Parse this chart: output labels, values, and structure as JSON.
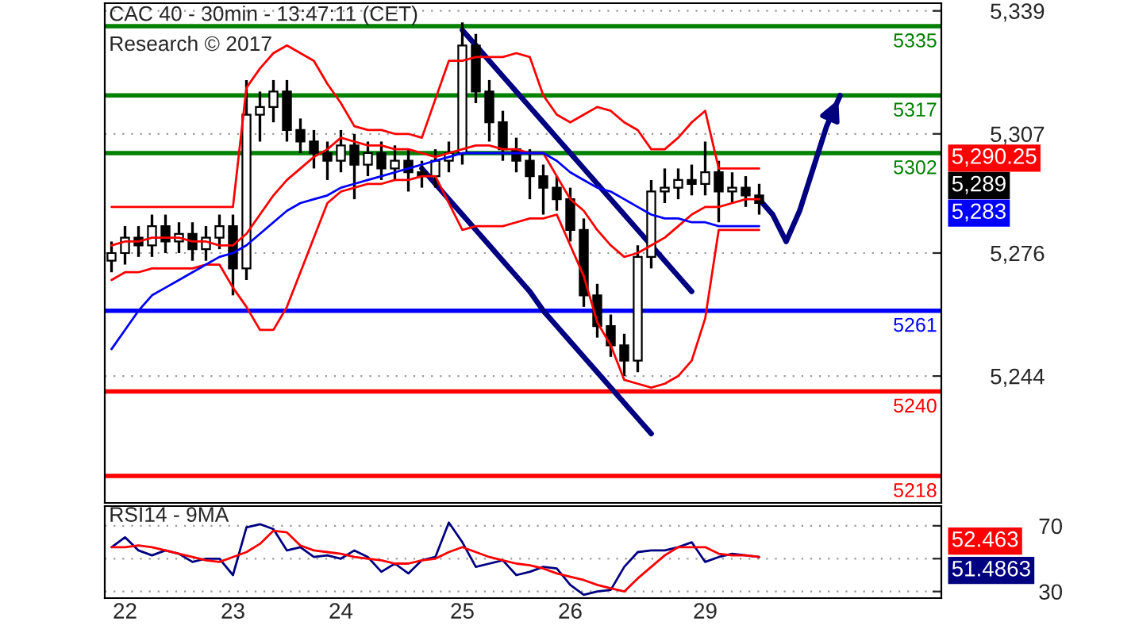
{
  "chart_data": [
    {
      "type": "candlestick",
      "title": "CAC 40 - 30min - 13:47:11 (CET)",
      "annotations": [
        "Research © 2017",
        "5,290.25",
        "5,289",
        "5,283"
      ],
      "categories": [
        null,
        "22",
        null,
        null,
        null,
        null,
        null,
        null,
        null,
        "23",
        null,
        null,
        null,
        null,
        null,
        null,
        null,
        "24",
        null,
        null,
        null,
        null,
        null,
        null,
        null,
        null,
        "25",
        null,
        null,
        null,
        null,
        null,
        null,
        null,
        "26",
        null,
        null,
        null,
        null,
        null,
        null,
        null,
        null,
        null,
        "29",
        null,
        null,
        null,
        null,
        null,
        null,
        null,
        null,
        null,
        null,
        null,
        null,
        null,
        null,
        null,
        null,
        null
      ],
      "ohlc": [
        [
          5274,
          5279,
          5271,
          5276
        ],
        [
          5276,
          5283,
          5273,
          5280
        ],
        [
          5280,
          5283,
          5275,
          5278
        ],
        [
          5278,
          5286,
          5275,
          5283
        ],
        [
          5283,
          5286,
          5276,
          5279
        ],
        [
          5279,
          5284,
          5276,
          5281
        ],
        [
          5281,
          5284,
          5274,
          5277
        ],
        [
          5277,
          5283,
          5274,
          5280
        ],
        [
          5280,
          5286,
          5277,
          5283
        ],
        [
          5283,
          5286,
          5265,
          5272
        ],
        [
          5272,
          5321,
          5269,
          5312
        ],
        [
          5312,
          5318,
          5305,
          5314
        ],
        [
          5314,
          5321,
          5310,
          5318
        ],
        [
          5318,
          5321,
          5305,
          5308
        ],
        [
          5308,
          5311,
          5302,
          5305
        ],
        [
          5305,
          5308,
          5298,
          5302
        ],
        [
          5302,
          5305,
          5295,
          5300
        ],
        [
          5300,
          5308,
          5297,
          5304
        ],
        [
          5304,
          5307,
          5290,
          5299
        ],
        [
          5299,
          5305,
          5296,
          5302
        ],
        [
          5302,
          5305,
          5295,
          5298
        ],
        [
          5298,
          5304,
          5295,
          5300
        ],
        [
          5300,
          5303,
          5292,
          5297
        ],
        [
          5297,
          5300,
          5293,
          5296
        ],
        [
          5296,
          5303,
          5293,
          5300
        ],
        [
          5300,
          5305,
          5297,
          5302
        ],
        [
          5302,
          5336,
          5299,
          5330
        ],
        [
          5330,
          5333,
          5315,
          5318
        ],
        [
          5318,
          5321,
          5305,
          5310
        ],
        [
          5310,
          5313,
          5300,
          5303
        ],
        [
          5303,
          5306,
          5297,
          5300
        ],
        [
          5300,
          5303,
          5290,
          5296
        ],
        [
          5296,
          5299,
          5286,
          5293
        ],
        [
          5293,
          5296,
          5287,
          5290
        ],
        [
          5290,
          5293,
          5279,
          5282
        ],
        [
          5282,
          5285,
          5262,
          5265
        ],
        [
          5265,
          5268,
          5254,
          5257
        ],
        [
          5257,
          5260,
          5249,
          5252
        ],
        [
          5252,
          5255,
          5244,
          5248
        ],
        [
          5248,
          5278,
          5245,
          5275
        ],
        [
          5275,
          5295,
          5272,
          5292
        ],
        [
          5292,
          5298,
          5289,
          5293
        ],
        [
          5293,
          5298,
          5290,
          5295
        ],
        [
          5295,
          5299,
          5291,
          5294
        ],
        [
          5294,
          5305,
          5291,
          5297
        ],
        [
          5297,
          5300,
          5284,
          5292
        ],
        [
          5292,
          5297,
          5289,
          5293
        ],
        [
          5293,
          5296,
          5288,
          5291
        ],
        [
          5291,
          5294,
          5286,
          5289
        ],
        null,
        null,
        null,
        null,
        null,
        null,
        null,
        null,
        null,
        null,
        null,
        null,
        null
      ],
      "series": [
        {
          "type": "line",
          "color": "#ff0000",
          "values": [
            5288,
            5288,
            5288,
            5288,
            5288,
            5288,
            5288,
            5288,
            5288,
            5288,
            5319,
            5324,
            5328,
            5330,
            5328,
            5326,
            5320,
            5315,
            5309,
            5308,
            5308,
            5307,
            5307,
            5306,
            5316,
            5326,
            5326,
            5327,
            5327,
            5327,
            5328,
            5327,
            5317,
            5312,
            5310,
            5312,
            5314,
            5313,
            5310,
            5308,
            5303,
            5303,
            5306,
            5310,
            5313,
            5298,
            5298,
            5298,
            5298,
            null,
            null,
            null,
            null,
            null,
            null,
            null,
            null,
            null,
            null,
            null,
            null,
            null
          ]
        },
        {
          "type": "line",
          "color": "#ff0000",
          "values": [
            5278,
            5279,
            5279,
            5280,
            5280,
            5280,
            5279,
            5279,
            5278,
            5278,
            5281,
            5286,
            5291,
            5295,
            5298,
            5301,
            5303,
            5306,
            5305,
            5304,
            5304,
            5303,
            5303,
            5302,
            5301,
            5302,
            5303,
            5304,
            5304,
            5303,
            5303,
            5302,
            5302,
            5296,
            5290,
            5287,
            5282,
            5278,
            5275,
            5276,
            5278,
            5280,
            5283,
            5286,
            5288,
            5288,
            5289,
            5290,
            5290,
            null,
            null,
            null,
            null,
            null,
            null,
            null,
            null,
            null,
            null,
            null,
            null,
            null
          ]
        },
        {
          "type": "line",
          "color": "#ff0000",
          "values": [
            5269,
            5271,
            5271,
            5272,
            5272,
            5272,
            5272,
            5273,
            5273,
            5267,
            5262,
            5256,
            5256,
            5262,
            5271,
            5280,
            5289,
            5292,
            5293,
            5294,
            5294,
            5295,
            5295,
            5296,
            5296,
            5289,
            5282,
            5283,
            5283,
            5283,
            5284,
            5285,
            5285,
            5286,
            5278,
            5270,
            5258,
            5252,
            5243,
            5242,
            5241,
            5242,
            5244,
            5248,
            5259,
            5282,
            5282,
            5282,
            5282,
            null,
            null,
            null,
            null,
            null,
            null,
            null,
            null,
            null,
            null,
            null,
            null,
            null
          ]
        },
        {
          "type": "line",
          "color": "#0000ff",
          "values": [
            5251,
            5256,
            5261,
            5265,
            5267,
            5269,
            5271,
            5273,
            5275,
            5276,
            5278,
            5281,
            5284,
            5287,
            5289,
            5290,
            5291,
            5293,
            5294,
            5295,
            5296,
            5297,
            5298,
            5299,
            5300,
            5301,
            5302,
            5302,
            5302,
            5302,
            5302,
            5302,
            5302,
            5300,
            5297,
            5295,
            5293,
            5292,
            5290,
            5288,
            5286,
            5285,
            5285,
            5284,
            5284,
            5283,
            5283,
            5283,
            5283,
            null,
            null,
            null,
            null,
            null,
            null,
            null,
            null,
            null,
            null,
            null,
            null,
            null
          ]
        },
        {
          "type": "line",
          "color": "#000080",
          "values": [
            null,
            null,
            null,
            null,
            null,
            null,
            null,
            null,
            null,
            null,
            null,
            null,
            null,
            null,
            null,
            null,
            null,
            null,
            null,
            null,
            null,
            null,
            null,
            null,
            null,
            null,
            5334,
            5330,
            5326,
            5322,
            5318,
            5314,
            5310,
            5306,
            5302,
            5298,
            5294,
            5290,
            5286,
            5282,
            5278,
            5274,
            5270,
            5266,
            null,
            null,
            null,
            null,
            null,
            null,
            null,
            null,
            null,
            null,
            null,
            null,
            null,
            null,
            null,
            null,
            null,
            null
          ]
        },
        {
          "type": "line",
          "color": "#000080",
          "values": [
            null,
            null,
            null,
            null,
            null,
            null,
            null,
            null,
            null,
            null,
            null,
            null,
            null,
            null,
            null,
            null,
            null,
            null,
            null,
            null,
            null,
            null,
            null,
            5298,
            5294,
            5290,
            5286,
            5282,
            5278,
            5274,
            5270,
            5266,
            5261,
            5257,
            5253,
            5249,
            5245,
            5241,
            5237,
            5233,
            5229,
            null,
            null,
            null,
            null,
            null,
            null,
            null,
            null,
            null,
            null,
            null,
            null,
            null,
            null,
            null,
            null,
            null,
            null,
            null,
            null,
            null
          ]
        },
        {
          "type": "line",
          "color": "#000080",
          "values": [
            null,
            null,
            null,
            null,
            null,
            null,
            null,
            null,
            null,
            null,
            null,
            null,
            null,
            null,
            null,
            null,
            null,
            null,
            null,
            null,
            null,
            null,
            null,
            null,
            null,
            null,
            null,
            null,
            null,
            null,
            null,
            null,
            null,
            null,
            null,
            null,
            null,
            null,
            null,
            null,
            null,
            null,
            null,
            null,
            null,
            null,
            null,
            null,
            5290,
            5286,
            5279,
            5287,
            5298,
            5309,
            5317,
            null,
            null,
            null,
            null,
            null,
            null,
            null
          ]
        }
      ],
      "ref_lines": [
        {
          "axis": "y",
          "value": 5335,
          "label": "5335",
          "color": "#008000"
        },
        {
          "axis": "y",
          "value": 5317,
          "label": "5317",
          "color": "#008000"
        },
        {
          "axis": "y",
          "value": 5302,
          "label": "5302",
          "color": "#008000"
        },
        {
          "axis": "y",
          "value": 5261,
          "label": "5261",
          "color": "#0000ff"
        },
        {
          "axis": "y",
          "value": 5240,
          "label": "5240",
          "color": "#ff0000"
        },
        {
          "axis": "y",
          "value": 5218,
          "label": "5218",
          "color": "#ff0000"
        }
      ],
      "ylim": [
        5211,
        5341
      ],
      "yticks": [
        {
          "value": 5244,
          "label": "5,244"
        },
        {
          "value": 5276,
          "label": "5,276"
        },
        {
          "value": 5307,
          "label": "5,307"
        },
        {
          "value": 5339,
          "label": "5,339"
        }
      ],
      "tick_labels": "y",
      "grid": "y",
      "legend": false
    },
    {
      "type": "line",
      "title": "RSI14 - 9MA",
      "annotations": [
        "52.463",
        "51.4863"
      ],
      "categories": [
        null,
        "22",
        null,
        null,
        null,
        null,
        null,
        null,
        null,
        "23",
        null,
        null,
        null,
        null,
        null,
        null,
        null,
        "24",
        null,
        null,
        null,
        null,
        null,
        null,
        null,
        null,
        "25",
        null,
        null,
        null,
        null,
        null,
        null,
        null,
        "26",
        null,
        null,
        null,
        null,
        null,
        null,
        null,
        null,
        null,
        "29",
        null,
        null,
        null,
        null,
        null,
        null,
        null,
        null,
        null,
        null,
        null,
        null,
        null,
        null,
        null,
        null,
        null
      ],
      "series": [
        {
          "color": "#000080",
          "values": [
            57,
            63,
            55,
            52,
            55,
            53,
            48,
            50,
            50,
            40,
            69,
            71,
            68,
            55,
            57,
            51,
            52,
            50,
            55,
            51,
            42,
            47,
            41,
            49,
            51,
            72,
            60,
            45,
            47,
            49,
            40,
            42,
            45,
            44,
            34,
            28,
            30,
            31,
            45,
            54,
            55,
            55,
            57,
            60,
            48,
            51,
            53,
            52,
            51,
            null,
            null,
            null,
            null,
            null,
            null,
            null,
            null,
            null,
            null,
            null,
            null,
            null
          ]
        },
        {
          "color": "#ff0000",
          "values": [
            57,
            57,
            58,
            57,
            55,
            53,
            51,
            49,
            48,
            51,
            54,
            59,
            67,
            66,
            58,
            55,
            54,
            53,
            51,
            50,
            49,
            47,
            47,
            49,
            50,
            54,
            57,
            54,
            51,
            49,
            47,
            46,
            44,
            41,
            39,
            37,
            34,
            32,
            30,
            38,
            45,
            52,
            57,
            57,
            57,
            53,
            52,
            52,
            51,
            null,
            null,
            null,
            null,
            null,
            null,
            null,
            null,
            null,
            null,
            null,
            null,
            null
          ]
        }
      ],
      "ylim": [
        26,
        82
      ],
      "yticks": [
        30,
        {
          "value": 50,
          "label": null
        },
        70
      ],
      "grid": "y",
      "legend": false
    }
  ]
}
